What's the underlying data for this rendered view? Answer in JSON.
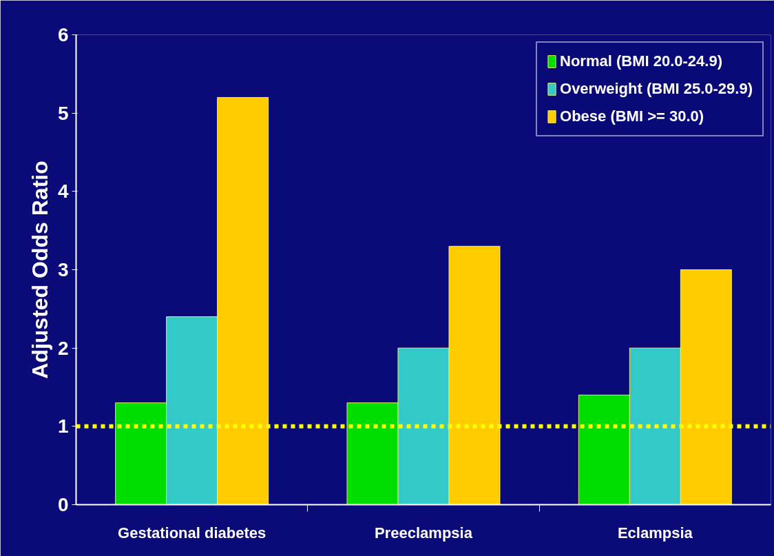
{
  "chart_data": {
    "type": "bar",
    "ylabel": "Adjusted Odds Ratio",
    "categories": [
      "Gestational diabetes",
      "Preeclampsia",
      "Eclampsia"
    ],
    "series": [
      {
        "name": "Normal (BMI 20.0-24.9)",
        "color": "#00dd00",
        "values": [
          1.3,
          1.3,
          1.4
        ]
      },
      {
        "name": "Overweight (BMI 25.0-29.9)",
        "color": "#33c9c9",
        "values": [
          2.4,
          2.0,
          2.0
        ]
      },
      {
        "name": "Obese (BMI >= 30.0)",
        "color": "#ffcc00",
        "values": [
          5.2,
          3.3,
          3.0
        ]
      }
    ],
    "ylim": [
      0,
      6
    ],
    "yticks": [
      0,
      1,
      2,
      3,
      4,
      5,
      6
    ],
    "grid": false,
    "legend": "top right",
    "ref_lines": [
      {
        "axis": "y",
        "value": 1,
        "color": "#ffff00",
        "line_style": "dashed"
      }
    ]
  }
}
